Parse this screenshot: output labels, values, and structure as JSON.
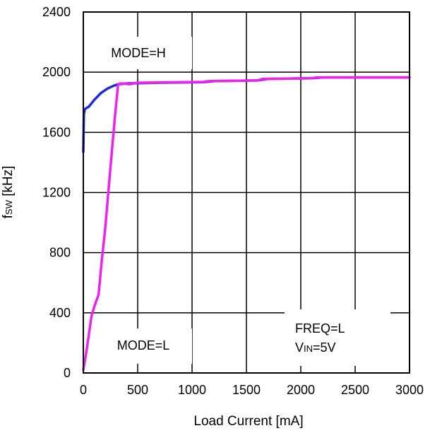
{
  "chart_data": {
    "type": "line",
    "xlabel": "Load Current [mA]",
    "ylabel": "fSW [kHz]",
    "ylabel_main": "f",
    "ylabel_sub": "SW",
    "ylabel_unit": " [kHz]",
    "xlim": [
      0,
      3000
    ],
    "ylim": [
      0,
      2400
    ],
    "x_ticks": [
      0,
      500,
      1000,
      1500,
      2000,
      2500,
      3000
    ],
    "y_ticks": [
      0,
      400,
      800,
      1200,
      1600,
      2000,
      2400
    ],
    "x_tick_labels": [
      "0",
      "500",
      "1000",
      "1500",
      "2000",
      "2500",
      "3000"
    ],
    "y_tick_labels": [
      "0",
      "400",
      "800",
      "1200",
      "1600",
      "2000",
      "2400"
    ],
    "grid": true,
    "series": [
      {
        "color": "#1f2bdc",
        "points": [
          [
            0,
            1470
          ],
          [
            5,
            1720
          ],
          [
            15,
            1755
          ],
          [
            50,
            1770
          ],
          [
            100,
            1815
          ],
          [
            160,
            1860
          ],
          [
            220,
            1890
          ],
          [
            280,
            1910
          ],
          [
            320,
            1920
          ],
          [
            400,
            1925
          ],
          [
            700,
            1930
          ],
          [
            1100,
            1933
          ],
          [
            1200,
            1940
          ],
          [
            1600,
            1945
          ],
          [
            1700,
            1955
          ],
          [
            2100,
            1960
          ],
          [
            2200,
            1965
          ],
          [
            3000,
            1965
          ]
        ]
      },
      {
        "color": "#ee22ee",
        "points": [
          [
            0,
            20
          ],
          [
            30,
            150
          ],
          [
            50,
            250
          ],
          [
            75,
            380
          ],
          [
            110,
            460
          ],
          [
            140,
            520
          ],
          [
            170,
            750
          ],
          [
            200,
            950
          ],
          [
            230,
            1200
          ],
          [
            260,
            1450
          ],
          [
            290,
            1700
          ],
          [
            320,
            1920
          ],
          [
            350,
            1925
          ],
          [
            430,
            1920
          ],
          [
            500,
            1930
          ],
          [
            1100,
            1935
          ],
          [
            1150,
            1940
          ],
          [
            1600,
            1945
          ],
          [
            1650,
            1955
          ],
          [
            2100,
            1960
          ],
          [
            2150,
            1965
          ],
          [
            3000,
            1965
          ]
        ]
      }
    ],
    "annotations": {
      "mode_h": "MODE=H",
      "mode_l": "MODE=L",
      "freq": "FREQ=L",
      "vin_main": "V",
      "vin_sub": "IN",
      "vin_rest": "=5V"
    }
  }
}
